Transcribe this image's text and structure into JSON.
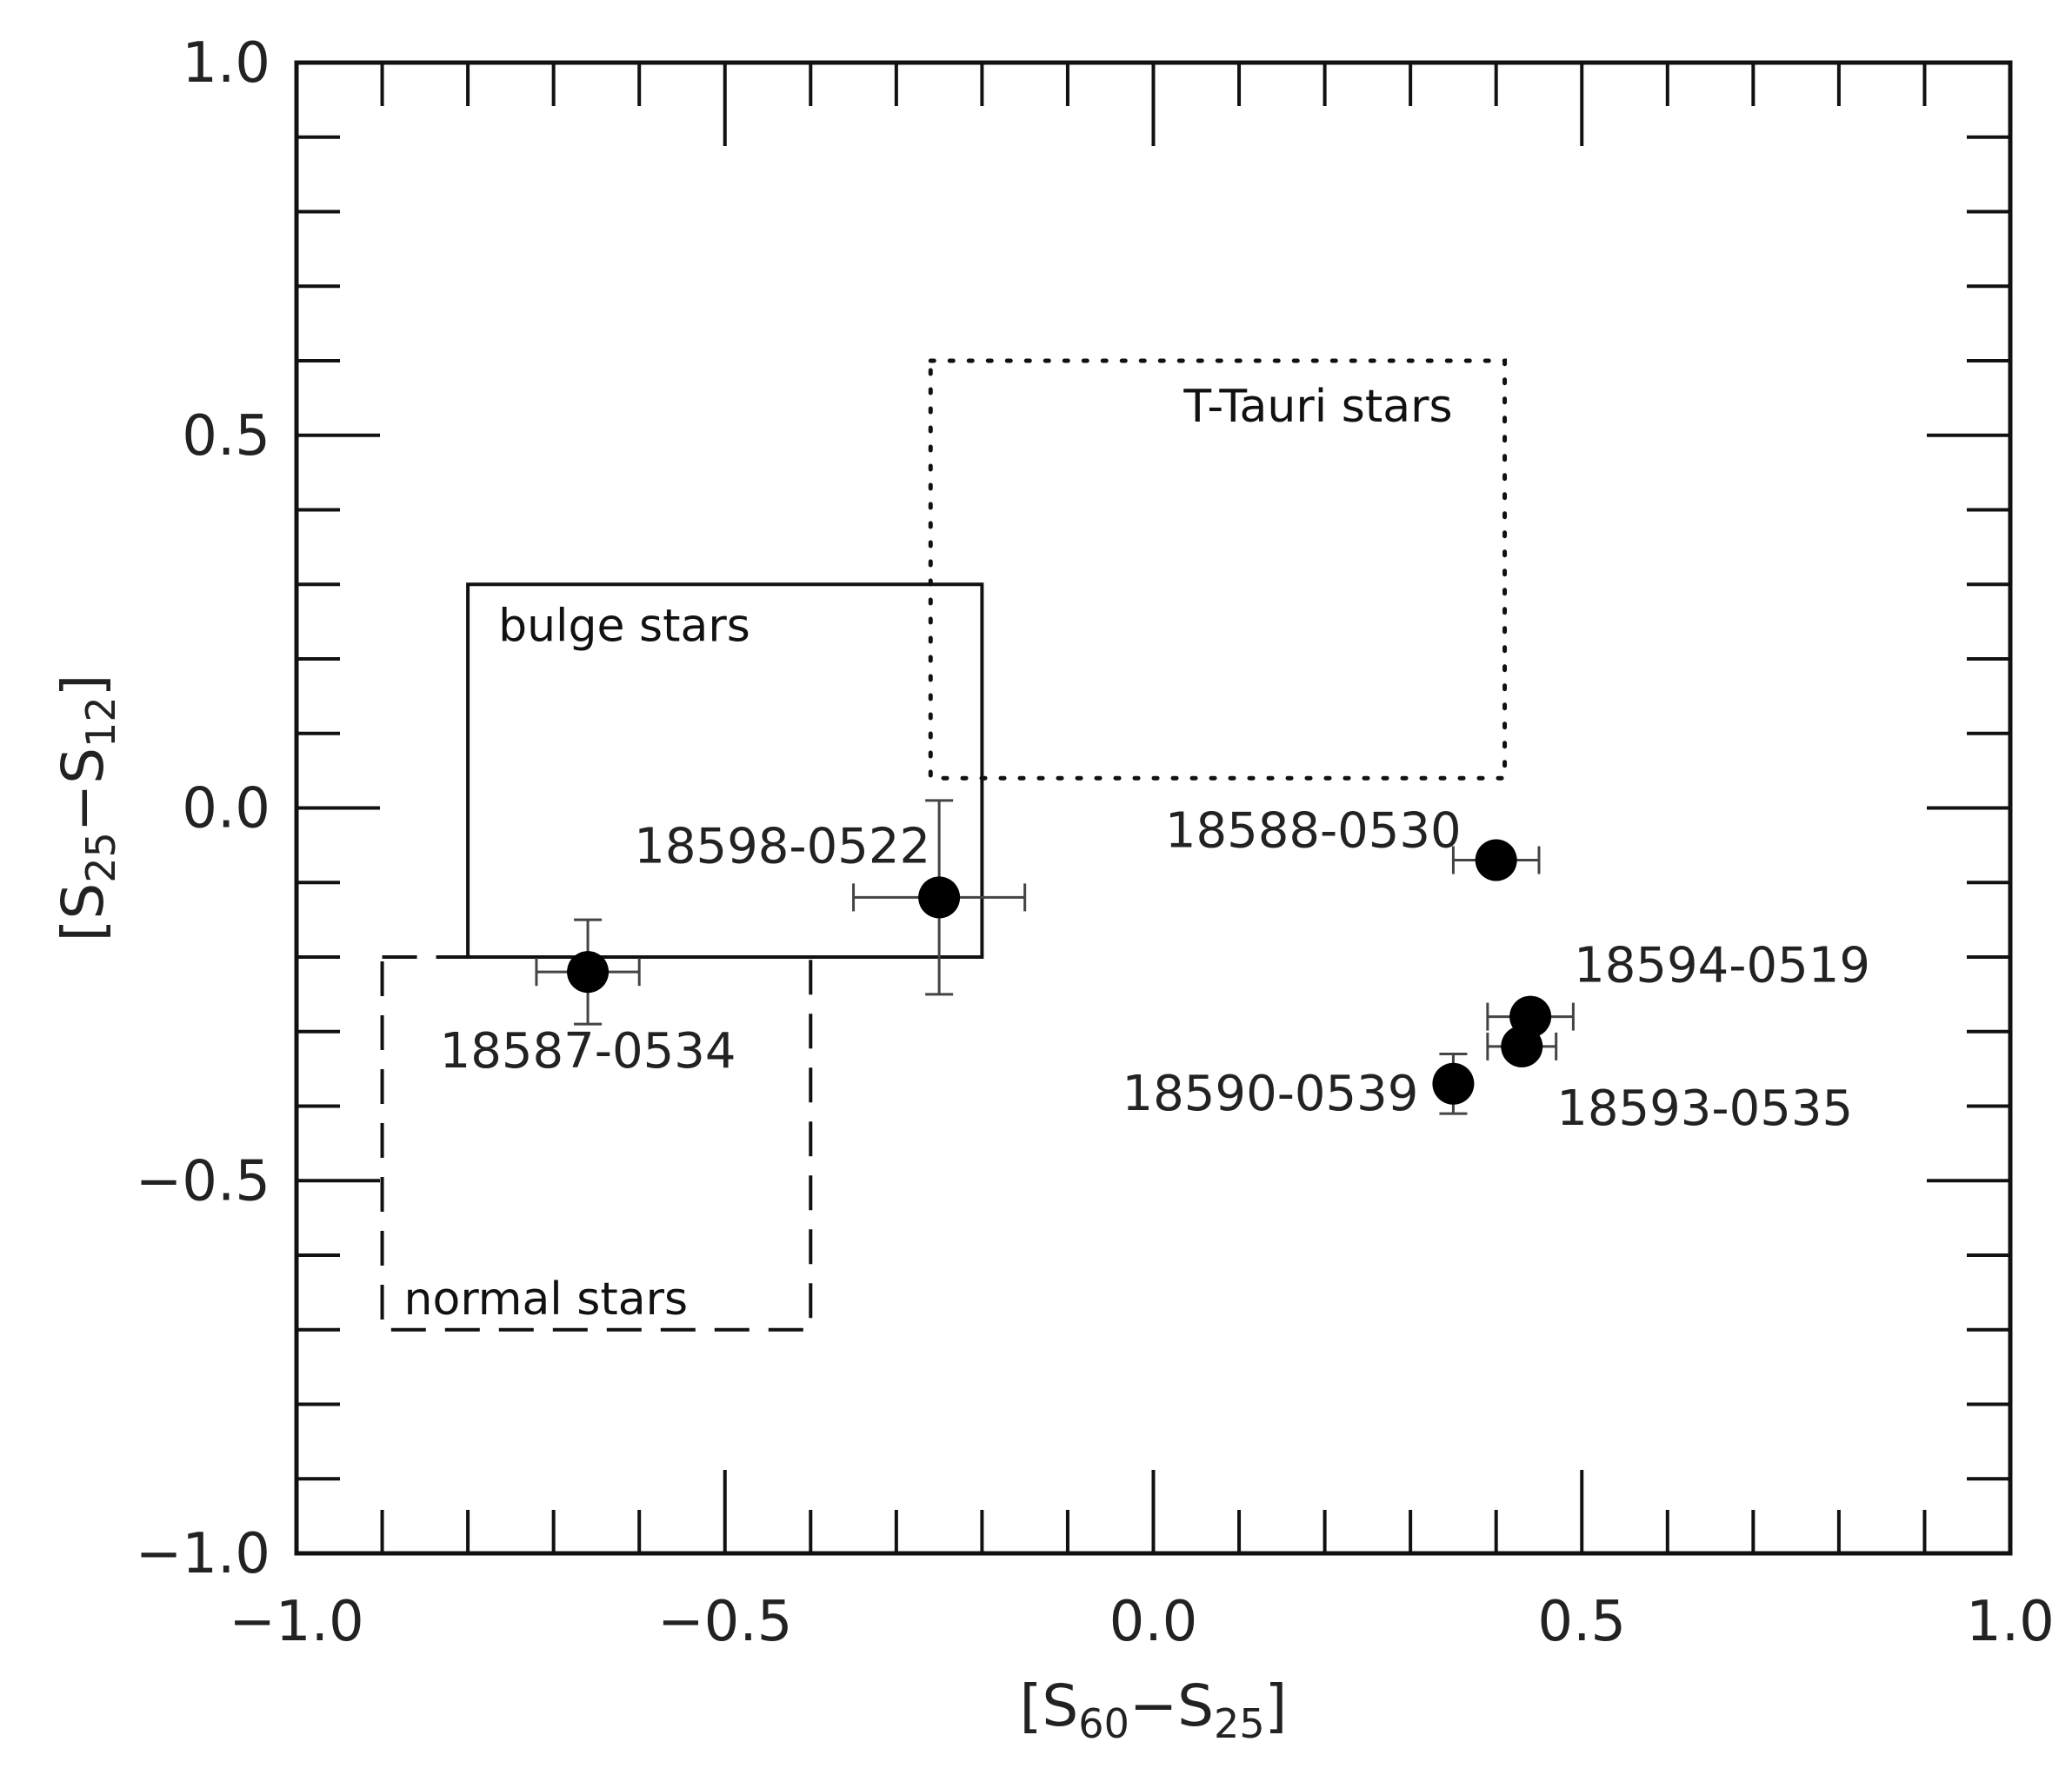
{
  "chart_data": {
    "type": "scatter",
    "title": "",
    "xlabel": {
      "base": "[S",
      "sub1": "60",
      "mid": "−S",
      "sub2": "25",
      "end": "]"
    },
    "ylabel": {
      "base": "[S",
      "sub1": "25",
      "mid": "−S",
      "sub2": "12",
      "end": "]"
    },
    "xlim": [
      -1.0,
      1.0
    ],
    "ylim": [
      -1.0,
      1.0
    ],
    "x_ticks": [
      {
        "value": -1.0,
        "label": "−1.0"
      },
      {
        "value": -0.5,
        "label": "−0.5"
      },
      {
        "value": 0.0,
        "label": "0.0"
      },
      {
        "value": 0.5,
        "label": "0.5"
      },
      {
        "value": 1.0,
        "label": "1.0"
      }
    ],
    "y_ticks": [
      {
        "value": 1.0,
        "label": "1.0"
      },
      {
        "value": 0.5,
        "label": "0.5"
      },
      {
        "value": 0.0,
        "label": "0.0"
      },
      {
        "value": -0.5,
        "label": "−0.5"
      },
      {
        "value": -1.0,
        "label": "−1.0"
      }
    ],
    "x_minor_step": 0.1,
    "y_minor_step": 0.1,
    "grid": false,
    "regions": [
      {
        "label": "bulge stars",
        "style": "solid",
        "x": [
          -0.8,
          -0.2
        ],
        "y": [
          -0.2,
          0.3
        ]
      },
      {
        "label": "T-Tauri stars",
        "style": "dotted",
        "x": [
          -0.26,
          0.41
        ],
        "y": [
          0.04,
          0.6
        ]
      },
      {
        "label": "normal stars",
        "style": "dashed",
        "x": [
          -0.9,
          -0.4
        ],
        "y": [
          -0.7,
          -0.2
        ]
      }
    ],
    "points": [
      {
        "label": "18587-0534",
        "x": -0.66,
        "y": -0.22,
        "xerr": 0.06,
        "yerr": 0.07
      },
      {
        "label": "18598-0522",
        "x": -0.25,
        "y": -0.12,
        "xerr": 0.1,
        "yerr": 0.13
      },
      {
        "label": "18588-0530",
        "x": 0.4,
        "y": -0.07,
        "xerr": 0.05,
        "yerr": 0.0
      },
      {
        "label": "18594-0519",
        "x": 0.44,
        "y": -0.28,
        "xerr": 0.05,
        "yerr": 0.0
      },
      {
        "label": "18593-0535",
        "x": 0.43,
        "y": -0.32,
        "xerr": 0.04,
        "yerr": 0.0
      },
      {
        "label": "18590-0539",
        "x": 0.35,
        "y": -0.37,
        "xerr": 0.0,
        "yerr": 0.04
      }
    ]
  }
}
